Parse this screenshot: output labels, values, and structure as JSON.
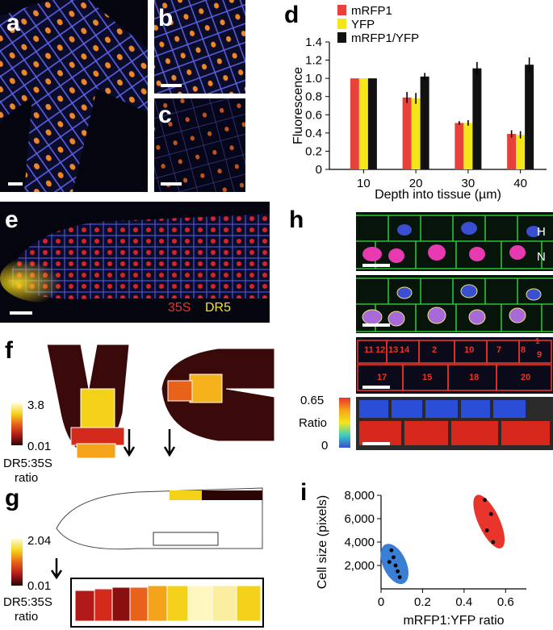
{
  "panels": {
    "a": "a",
    "b": "b",
    "c": "c",
    "d": "d",
    "e": "e",
    "f": "f",
    "g": "g",
    "h": "h",
    "i": "i"
  },
  "panel_e": {
    "label_35s": "35S",
    "label_dr5": "DR5"
  },
  "panel_f": {
    "scale_max": "3.8",
    "scale_min": "0.01",
    "scale_title_line1": "DR5:35S",
    "scale_title_line2": "ratio"
  },
  "panel_g": {
    "scale_max": "2.04",
    "scale_min": "0.01",
    "scale_title_line1": "DR5:35S",
    "scale_title_line2": "ratio"
  },
  "panel_h": {
    "label_h": "H",
    "label_n": "N",
    "scale_max": "0.65",
    "scale_mid": "Ratio",
    "scale_min": "0",
    "cell_numbers": [
      "11",
      "12",
      "13",
      "14",
      "2",
      "10",
      "7",
      "8",
      "9",
      "17",
      "15",
      "18",
      "20",
      "1"
    ]
  },
  "colors": {
    "mrfp1": "#e8413c",
    "yfp": "#f5e61a",
    "ratio": "#111111",
    "membrane": "#5a62e6",
    "nucleus": "#f0862a"
  },
  "chart_data": [
    {
      "type": "bar",
      "panel": "d",
      "categories": [
        "10",
        "20",
        "30",
        "40"
      ],
      "series": [
        {
          "name": "mRFP1",
          "values": [
            1.0,
            0.79,
            0.51,
            0.39
          ],
          "errors": [
            0.0,
            0.06,
            0.02,
            0.04
          ]
        },
        {
          "name": "YFP",
          "values": [
            1.0,
            0.78,
            0.51,
            0.38
          ],
          "errors": [
            0.0,
            0.06,
            0.03,
            0.04
          ]
        },
        {
          "name": "mRFP1/YFP",
          "values": [
            1.0,
            1.02,
            1.11,
            1.15
          ],
          "errors": [
            0.0,
            0.04,
            0.07,
            0.08
          ]
        }
      ],
      "xlabel": "Depth into tissue (µm)",
      "ylabel": "Fluorescence",
      "ylim": [
        0,
        1.4
      ],
      "yticks": [
        "0",
        "0.2",
        "0.4",
        "0.6",
        "0.8",
        "1.0",
        "1.2",
        "1.4"
      ],
      "legend": "top-left",
      "grid": false
    },
    {
      "type": "scatter",
      "panel": "i",
      "series": [
        {
          "name": "",
          "color": "#3b7fd4",
          "x": [
            0.05,
            0.06,
            0.04,
            0.07,
            0.08,
            0.09
          ],
          "y": [
            3300,
            2700,
            2300,
            2000,
            1500,
            1000
          ]
        },
        {
          "name": "",
          "color": "#e8342a",
          "x": [
            0.5,
            0.53,
            0.51,
            0.54
          ],
          "y": [
            7600,
            6400,
            5000,
            4000
          ]
        }
      ],
      "xlabel": "mRFP1:YFP ratio",
      "ylabel": "Cell size (pixels)",
      "xlim": [
        0,
        0.7
      ],
      "ylim": [
        0,
        8000
      ],
      "xticks": [
        "0",
        "0.2",
        "0.4",
        "0.6"
      ],
      "yticks": [
        "2,000",
        "4,000",
        "6,000",
        "8,000"
      ],
      "grid": false
    }
  ]
}
